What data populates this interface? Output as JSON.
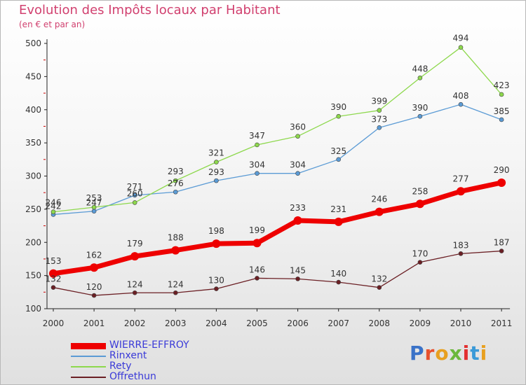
{
  "title": "Evolution des Impôts locaux par Habitant",
  "subtitle": "(en € et par an)",
  "logo": {
    "text": "Proxiti",
    "letter_colors": [
      "#3a72c8",
      "#e8502c",
      "#e8a020",
      "#6bb83c",
      "#e23030",
      "#3a9ad8",
      "#e8a020"
    ]
  },
  "chart_data": {
    "type": "line",
    "categories": [
      "2000",
      "2001",
      "2002",
      "2003",
      "2004",
      "2005",
      "2006",
      "2007",
      "2008",
      "2009",
      "2010",
      "2011"
    ],
    "ylim": [
      100,
      500
    ],
    "yticks": [
      100,
      150,
      200,
      250,
      300,
      350,
      400,
      450,
      500
    ],
    "grid": false,
    "legend_position": "bottom-left",
    "series": [
      {
        "name": "WIERRE-EFFROY",
        "color": "#ee0000",
        "values": [
          153,
          162,
          179,
          188,
          198,
          199,
          233,
          231,
          246,
          258,
          277,
          290
        ]
      },
      {
        "name": "Rinxent",
        "color": "#5b9bd5",
        "values": [
          242,
          247,
          271,
          276,
          293,
          304,
          304,
          325,
          373,
          390,
          408,
          385
        ]
      },
      {
        "name": "Rety",
        "color": "#8dd84c",
        "values": [
          246,
          253,
          260,
          293,
          321,
          347,
          360,
          390,
          399,
          448,
          494,
          423
        ]
      },
      {
        "name": "Offrethun",
        "color": "#6b1f24",
        "values": [
          132,
          120,
          124,
          124,
          130,
          146,
          145,
          140,
          132,
          170,
          183,
          187
        ]
      }
    ]
  }
}
